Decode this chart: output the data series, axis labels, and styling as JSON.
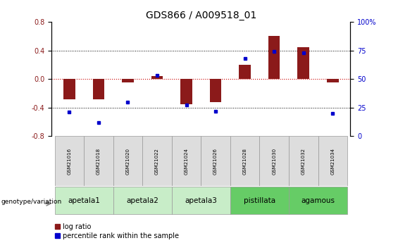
{
  "title": "GDS866 / A009518_01",
  "samples": [
    "GSM21016",
    "GSM21018",
    "GSM21020",
    "GSM21022",
    "GSM21024",
    "GSM21026",
    "GSM21028",
    "GSM21030",
    "GSM21032",
    "GSM21034"
  ],
  "log_ratio": [
    -0.28,
    -0.28,
    -0.05,
    0.04,
    -0.35,
    -0.32,
    0.2,
    0.6,
    0.45,
    -0.05
  ],
  "percentile_rank": [
    21,
    12,
    30,
    53,
    27,
    22,
    68,
    74,
    73,
    20
  ],
  "groups": [
    {
      "label": "apetala1",
      "samples": [
        0,
        1
      ],
      "color": "#c8edc8"
    },
    {
      "label": "apetala2",
      "samples": [
        2,
        3
      ],
      "color": "#c8edc8"
    },
    {
      "label": "apetala3",
      "samples": [
        4,
        5
      ],
      "color": "#c8edc8"
    },
    {
      "label": "pistillata",
      "samples": [
        6,
        7
      ],
      "color": "#66cc66"
    },
    {
      "label": "agamous",
      "samples": [
        8,
        9
      ],
      "color": "#66cc66"
    }
  ],
  "ylim_left": [
    -0.8,
    0.8
  ],
  "ylim_right": [
    0,
    100
  ],
  "yticks_left": [
    -0.8,
    -0.4,
    0.0,
    0.4,
    0.8
  ],
  "yticks_right": [
    0,
    25,
    50,
    75,
    100
  ],
  "bar_color": "#8b1a1a",
  "dot_color": "#0000cc",
  "hline_color": "#cc0000",
  "grid_dotted_vals": [
    -0.4,
    0.4
  ],
  "title_fontsize": 10,
  "tick_fontsize": 7,
  "label_fontsize": 6.5,
  "legend_fontsize": 7,
  "group_label_fontsize": 7.5
}
